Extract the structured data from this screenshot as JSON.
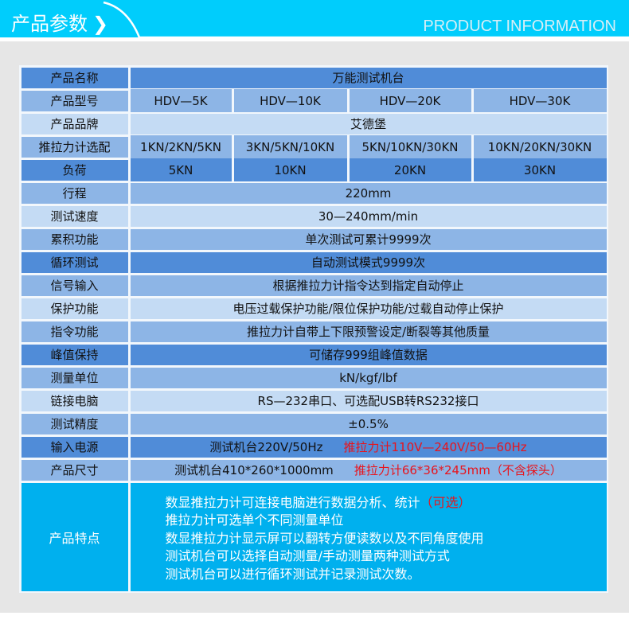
{
  "header": {
    "title": "产品参数",
    "chevron": "❯",
    "subtitle": "PRODUCT INFORMATION"
  },
  "rows": [
    {
      "label": "产品名称",
      "value": "万能测试机台",
      "tone": "d"
    },
    {
      "label": "产品型号",
      "values": [
        "HDV—5K",
        "HDV—10K",
        "HDV—20K",
        "HDV—30K"
      ],
      "tone": "m"
    },
    {
      "label": "产品品牌",
      "value": "艾德堡",
      "tone": "l"
    },
    {
      "label": "推拉力计选配",
      "values": [
        "1KN/2KN/5KN",
        "3KN/5KN/10KN",
        "5KN/10KN/30KN",
        "10KN/20KN/30KN"
      ],
      "tone": "m"
    },
    {
      "label": "负荷",
      "values": [
        "5KN",
        "10KN",
        "20KN",
        "30KN"
      ],
      "tone": "d"
    },
    {
      "label": "行程",
      "value": "220mm",
      "tone": "m"
    },
    {
      "label": "测试速度",
      "value": "30—240mm/min",
      "tone": "l"
    },
    {
      "label": "累积功能",
      "value": "单次测试可累计9999次",
      "tone": "m"
    },
    {
      "label": "循环测试",
      "value": "自动测试模式9999次",
      "tone": "d"
    },
    {
      "label": "信号输入",
      "value": "根据推拉力计指令达到指定自动停止",
      "tone": "m"
    },
    {
      "label": "保护功能",
      "value": "电压过载保护功能/限位保护功能/过载自动停止保护",
      "tone": "l"
    },
    {
      "label": "指令功能",
      "value": "推拉力计自带上下限预警设定/断裂等其他质量",
      "tone": "m"
    },
    {
      "label": "峰值保持",
      "value": "可储存999组峰值数据",
      "tone": "d"
    },
    {
      "label": "测量单位",
      "value": "kN/kgf/lbf",
      "tone": "m"
    },
    {
      "label": "链接电脑",
      "value": "RS—232串口、可选配USB转RS232接口",
      "tone": "l"
    },
    {
      "label": "测试精度",
      "value": "±0.5%",
      "tone": "m"
    },
    {
      "label": "输入电源",
      "value": "测试机台220V/50Hz",
      "red": "推拉力计110V—240V/50—60Hz",
      "tone": "d"
    },
    {
      "label": "产品尺寸",
      "value": "测试机台410*260*1000mm",
      "red": "推拉力计66*36*245mm（不含探头）",
      "tone": "m"
    }
  ],
  "features": {
    "label": "产品特点",
    "line1": "数显推拉力计可连接电脑进行数据分析、统计",
    "line1_red": "（可选）",
    "lines": [
      "推拉力计可选单个不同测量单位",
      "数显推拉力计显示屏可以翻转方便读数以及不同角度使用",
      "测试机台可以选择自动测量/手动测量两种测试方式",
      "测试机台可以进行循环测试并记录测试次数。"
    ]
  },
  "colors": {
    "header": "#00cdfc",
    "dark": "#508cd8",
    "medium": "#8db5e6",
    "light": "#c4dbf4",
    "feature": "#00b0ee",
    "red": "#e8141c"
  }
}
